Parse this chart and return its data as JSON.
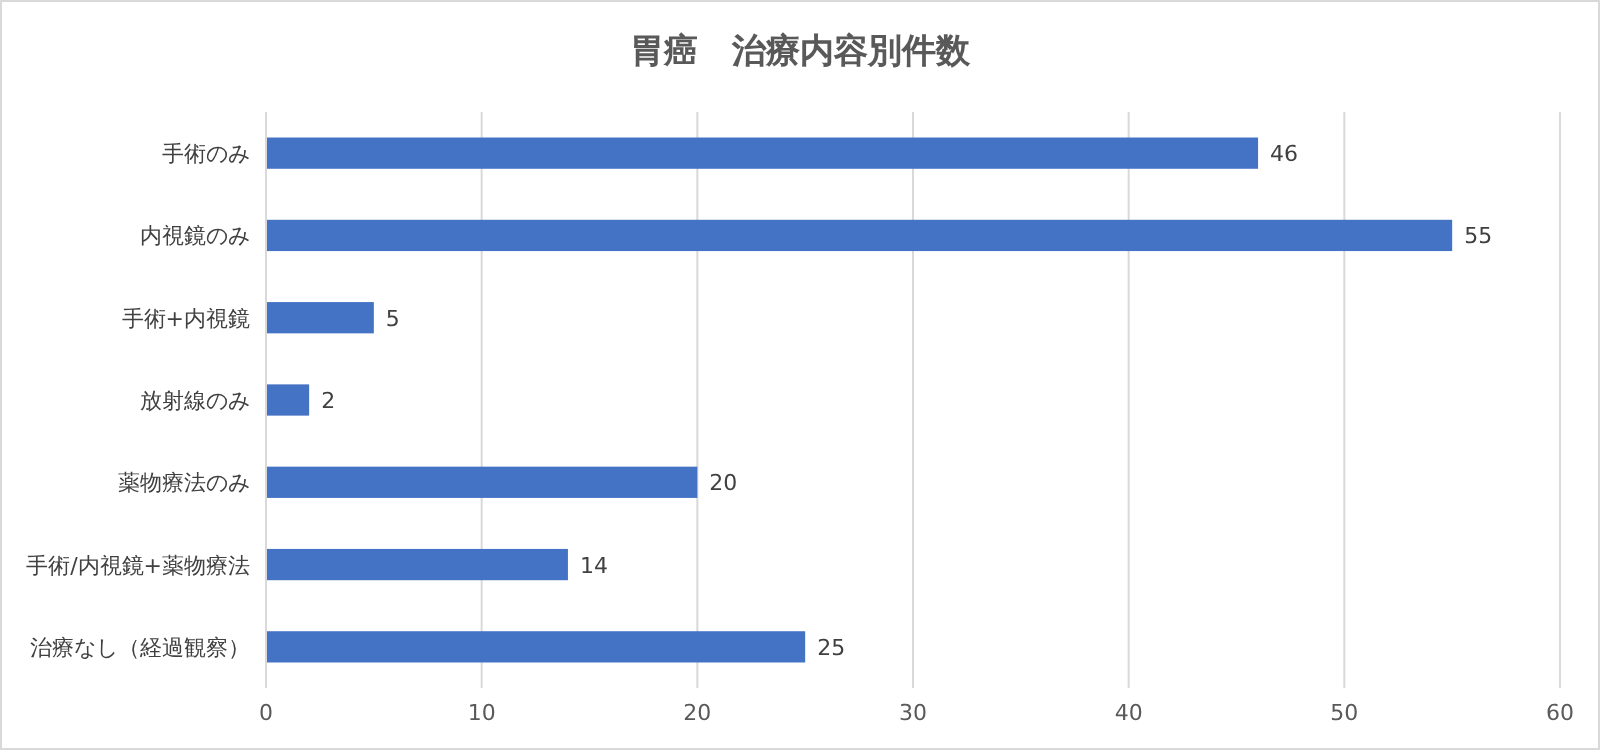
{
  "chart_data": {
    "type": "bar",
    "orientation": "horizontal",
    "title": "胃癌　治療内容別件数",
    "categories": [
      "手術のみ",
      "内視鏡のみ",
      "手術+内視鏡",
      "放射線のみ",
      "薬物療法のみ",
      "手術/内視鏡+薬物療法",
      "治療なし（経過観察）"
    ],
    "values": [
      46,
      55,
      5,
      2,
      20,
      14,
      25
    ],
    "color": "#4472c4",
    "xlim": [
      0,
      60
    ],
    "xticks": [
      0,
      10,
      20,
      30,
      40,
      50,
      60
    ],
    "grid": "x",
    "data_labels": true
  }
}
